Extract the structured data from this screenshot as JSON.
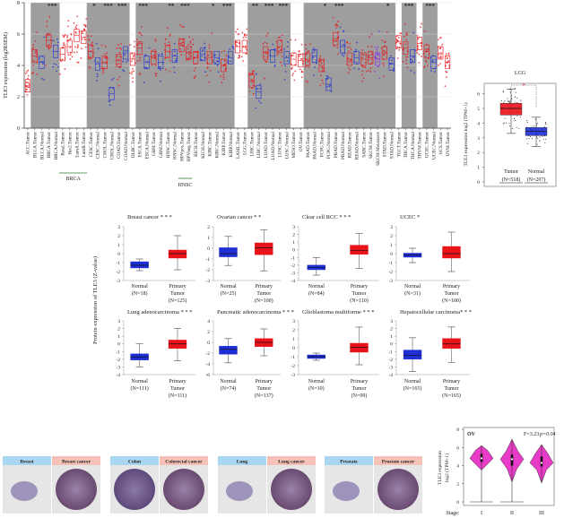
{
  "colors": {
    "tumor": "#e8141a",
    "normal": "#1f2fd6",
    "metastasis": "#8a2be2",
    "shade": "#9e9e9e",
    "violin": "#e83cc8",
    "normal_header": "#a9d6f0",
    "cancer_header": "#f6c1b6"
  },
  "chart_data": [
    {
      "id": "pan_cancer",
      "type": "box",
      "ylabel": "TLE3 expression (log2RSEM)",
      "ylim": [
        0,
        8
      ],
      "yticks": [
        0,
        2,
        4,
        6,
        8
      ],
      "categories": [
        "ACC.Tumor",
        "BLCA.Tumor",
        "BLCA.Normal",
        "BRCA.Tumor",
        "BRCA.Normal",
        "Basal.Tumor",
        "Her2.Tumor",
        "LumA.Tumor",
        "LumB.Tumor",
        "CESC.Tumor",
        "CESC.Normal",
        "CHOL.Tumor",
        "CHOL.Normal",
        "COAD.Tumor",
        "COAD.Normal",
        "DLBC.Tumor",
        "ESCA.Tumor",
        "ESCA.Normal",
        "GBM.Tumor",
        "GBM.Normal",
        "HNSC.Tumor",
        "HNSC.Normal",
        "HPVpos.Tumor",
        "HPVneg.Tumor",
        "KICH.Tumor",
        "KICH.Normal",
        "KIRC.Tumor",
        "KIRC.Normal",
        "KIRP.Tumor",
        "KIRP.Normal",
        "LAML.Tumor",
        "LGG.Tumor",
        "LIHC.Tumor",
        "LIHC.Normal",
        "LUAD.Tumor",
        "LUAD.Normal",
        "LUSC.Tumor",
        "LUSC.Normal",
        "MESO.Tumor",
        "OV.Tumor",
        "PAAD.Tumor",
        "PAAD.Normal",
        "PCPG.Tumor",
        "PCPG.Normal",
        "PRAD.Tumor",
        "PRAD.Normal",
        "READ.Tumor",
        "READ.Normal",
        "SARC.Tumor",
        "SKCM.Tumor",
        "SKCM.Metastasis",
        "STAD.Tumor",
        "STAD.Normal",
        "TGCT.Tumor",
        "THCA.Tumor",
        "THCA.Normal",
        "THYM.Tumor",
        "UCEC.Tumor",
        "UCEC.Normal",
        "UCS.Tumor",
        "UVM.Tumor"
      ],
      "medians": [
        2.7,
        4.6,
        4.2,
        5.6,
        4.9,
        4.7,
        5.2,
        5.9,
        5.8,
        4.9,
        4.1,
        4.2,
        2.2,
        4.3,
        4.8,
        4.4,
        5.1,
        4.2,
        4.5,
        4.2,
        4.9,
        4.6,
        5.3,
        4.8,
        4.5,
        4.7,
        4.5,
        4.5,
        4.0,
        4.5,
        5.2,
        5.2,
        3.0,
        2.3,
        4.8,
        4.6,
        5.2,
        4.5,
        4.4,
        4.3,
        4.4,
        4.6,
        4.0,
        2.8,
        5.7,
        5.2,
        4.4,
        4.5,
        4.4,
        4.5,
        4.4,
        4.8,
        4.1,
        5.5,
        5.1,
        4.6,
        5.4,
        4.9,
        4.2,
        4.8,
        4.2
      ],
      "shaded_groups": [
        [
          1,
          2
        ],
        [
          3,
          4
        ],
        [
          9,
          10
        ],
        [
          11,
          12
        ],
        [
          13,
          14
        ],
        [
          16,
          17
        ],
        [
          18,
          19
        ],
        [
          20,
          21
        ],
        [
          22,
          23
        ],
        [
          24,
          25
        ],
        [
          26,
          27
        ],
        [
          28,
          29
        ],
        [
          32,
          33
        ],
        [
          34,
          35
        ],
        [
          36,
          37
        ],
        [
          40,
          41
        ],
        [
          42,
          43
        ],
        [
          44,
          45
        ],
        [
          46,
          47
        ],
        [
          48,
          48
        ],
        [
          49,
          50
        ],
        [
          51,
          52
        ],
        [
          54,
          55
        ],
        [
          57,
          58
        ]
      ],
      "significance": [
        {
          "group": "BRCA",
          "label": "***",
          "at": 3.5
        },
        {
          "group": "CESC",
          "label": "*",
          "at": 9.5
        },
        {
          "group": "CHOL",
          "label": "***",
          "at": 11.5
        },
        {
          "group": "COAD",
          "label": "***",
          "at": 13.5
        },
        {
          "group": "ESCA",
          "label": "***",
          "at": 16.5
        },
        {
          "group": "HNSC",
          "label": "**",
          "at": 20.5
        },
        {
          "group": "HPV",
          "label": "***",
          "at": 22.5
        },
        {
          "group": "KIRC",
          "label": "*",
          "at": 26.5
        },
        {
          "group": "KIRP",
          "label": "***",
          "at": 28.5
        },
        {
          "group": "LIHC",
          "label": "**",
          "at": 32.5
        },
        {
          "group": "LUAD",
          "label": "***",
          "at": 34.5
        },
        {
          "group": "LUSC",
          "label": "***",
          "at": 36.5
        },
        {
          "group": "PCPG",
          "label": "*",
          "at": 42.5
        },
        {
          "group": "PRAD",
          "label": "***",
          "at": 44.5
        },
        {
          "group": "STAD",
          "label": "*",
          "at": 51.5
        },
        {
          "group": "THCA",
          "label": "***",
          "at": 54.5
        },
        {
          "group": "UCEC",
          "label": "***",
          "at": 57.5
        }
      ],
      "subgroup_labels": [
        "BRCA",
        "HNSC"
      ]
    },
    {
      "id": "lgg",
      "type": "box",
      "title": "LGG",
      "ylabel": "TLE3 expression log2 (TPM+1)",
      "yticks": [
        0,
        1,
        2,
        3,
        4,
        5,
        6
      ],
      "significance": "*",
      "groups": [
        {
          "label": "Tumor",
          "n": "(N=518)",
          "min": 3.3,
          "q1": 4.55,
          "median": 5.0,
          "q3": 5.35,
          "max": 6.3
        },
        {
          "label": "Normal",
          "n": "(N=207)",
          "min": 2.4,
          "q1": 3.15,
          "median": 3.45,
          "q3": 3.7,
          "max": 4.4
        }
      ]
    }
  ],
  "protein": {
    "ylabel": "Protein expression of TLE3 (Z-value)",
    "panels": [
      {
        "title": "Breast cancer * * *",
        "ylim": [
          -3,
          3
        ],
        "normal": {
          "label": "Normal",
          "n": "(N=18)",
          "min": -1.9,
          "q1": -1.6,
          "median": -1.3,
          "q3": -0.9,
          "max": -0.6
        },
        "tumor": {
          "label1": "Primary",
          "label2": "Tumor",
          "n": "(N=125)",
          "min": -1.8,
          "q1": -0.5,
          "median": 0.0,
          "q3": 0.4,
          "max": 2.0
        }
      },
      {
        "title": "Ovarian cancer * *",
        "ylim": [
          -3,
          2
        ],
        "normal": {
          "label": "Normal",
          "n": "(N=25)",
          "min": -1.6,
          "q1": -0.8,
          "median": -0.5,
          "q3": 0.05,
          "max": 1.1
        },
        "tumor": {
          "label1": "Primary",
          "label2": "Tumor",
          "n": "(N=100)",
          "min": -2.1,
          "q1": -0.6,
          "median": 0.05,
          "q3": 0.5,
          "max": 1.7
        }
      },
      {
        "title": "Clear cell RCC * * *",
        "ylim": [
          -4,
          3
        ],
        "normal": {
          "label": "Normal",
          "n": "(N=84)",
          "min": -3.3,
          "q1": -2.6,
          "median": -2.3,
          "q3": -2.0,
          "max": -1.0
        },
        "tumor": {
          "label1": "Primary",
          "label2": "Tumor",
          "n": "(N=110)",
          "min": -2.4,
          "q1": -0.6,
          "median": -0.1,
          "q3": 0.6,
          "max": 2.1
        }
      },
      {
        "title": "UCEC *",
        "ylim": [
          -3,
          3
        ],
        "normal": {
          "label": "Normal",
          "n": "(N=31)",
          "min": -1.0,
          "q1": -0.4,
          "median": -0.15,
          "q3": 0.05,
          "max": 0.6
        },
        "tumor": {
          "label1": "Primary",
          "label2": "Tumor",
          "n": "(N=100)",
          "min": -2.0,
          "q1": -0.5,
          "median": 0.0,
          "q3": 0.8,
          "max": 2.4
        }
      },
      {
        "title": "Lung adenocarcinoma * * *",
        "ylim": [
          -4,
          3
        ],
        "normal": {
          "label": "Normal",
          "n": "(N=111)",
          "min": -3.0,
          "q1": -2.1,
          "median": -1.7,
          "q3": -1.3,
          "max": 0.0
        },
        "tumor": {
          "label1": "Primary",
          "label2": "Tumor",
          "n": "(N=111)",
          "min": -2.2,
          "q1": -0.6,
          "median": 0.0,
          "q3": 0.5,
          "max": 2.0
        }
      },
      {
        "title": "Pancreatic adenocarcinoma * * *",
        "ylim": [
          -6,
          4
        ],
        "normal": {
          "label": "Normal",
          "n": "(N=74)",
          "min": -3.8,
          "q1": -2.2,
          "median": -1.3,
          "q3": -0.7,
          "max": 0.7
        },
        "tumor": {
          "label1": "Primary",
          "label2": "Tumor",
          "n": "(N=137)",
          "min": -2.5,
          "q1": -0.8,
          "median": 0.0,
          "q3": 0.7,
          "max": 2.5
        }
      },
      {
        "title": "Glioblastoma multiforme * * *",
        "ylim": [
          -3,
          3
        ],
        "normal": {
          "label": "Normal",
          "n": "(N=10)",
          "min": -1.4,
          "q1": -1.2,
          "median": -1.0,
          "q3": -0.8,
          "max": -0.6
        },
        "tumor": {
          "label1": "Primary",
          "label2": "Tumor",
          "n": "(N=99)",
          "min": -1.9,
          "q1": -0.5,
          "median": 0.05,
          "q3": 0.5,
          "max": 2.3
        }
      },
      {
        "title": "Hepatocellular carcinoma* * *",
        "ylim": [
          -4,
          3
        ],
        "normal": {
          "label": "Normal",
          "n": "(N=165)",
          "min": -3.6,
          "q1": -2.0,
          "median": -1.5,
          "q3": -0.8,
          "max": 0.8
        },
        "tumor": {
          "label1": "Primary",
          "label2": "Tumor",
          "n": "(N=165)",
          "min": -2.4,
          "q1": -0.6,
          "median": 0.0,
          "q3": 0.7,
          "max": 2.2
        }
      }
    ]
  },
  "ihc": [
    {
      "normal": "Breast",
      "cancer": "Breast cancer"
    },
    {
      "normal": "Colon",
      "cancer": "Colorectal cancer"
    },
    {
      "normal": "Lung",
      "cancer": "Lung cancer"
    },
    {
      "normal": "Prostate",
      "cancer": "Prostate cancer"
    }
  ],
  "violin": {
    "type": "violin",
    "title": "OV",
    "stat": "F=3.23",
    "pvalue": "p=0.04",
    "ylabel1": "TLE3 expression",
    "ylabel2": "log2 (TPM+1)",
    "ylim": [
      0,
      8
    ],
    "yticks": [
      0,
      2,
      4,
      6,
      8
    ],
    "xlabel": "Stage:",
    "stages": [
      {
        "label": "I",
        "min": 3.5,
        "q1": 4.4,
        "median": 4.8,
        "q3": 5.3,
        "max": 6.2,
        "outlier_min": 0
      },
      {
        "label": "II",
        "min": 2.2,
        "q1": 4.0,
        "median": 4.7,
        "q3": 5.2,
        "max": 6.9,
        "outlier_min": 0
      },
      {
        "label": "III",
        "min": 2.1,
        "q1": 3.9,
        "median": 4.3,
        "q3": 5.0,
        "max": 6.3
      }
    ]
  }
}
